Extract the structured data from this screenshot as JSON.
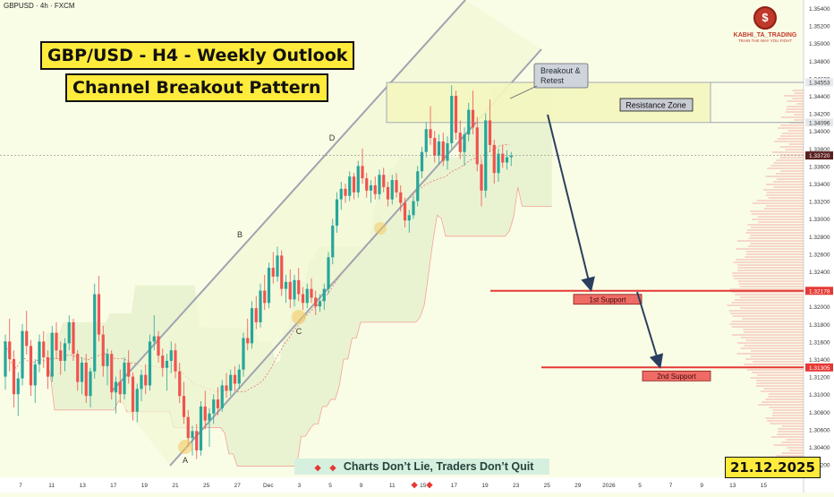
{
  "symbol_header": "GBPUSD · 4h · FXCM",
  "title_line1": "GBP/USD - H4 - Weekly Outlook",
  "title_line2": "Channel Breakout Pattern",
  "date_badge": "21.12.2025",
  "tagline": "Charts Don’t Lie, Traders Don’t Quit",
  "logo": {
    "name": "KABHI_TA_TRADING",
    "slogan": "TRAIN THE WAY YOU FIGHT",
    "icon": "dollar-coin-icon"
  },
  "colors": {
    "bull": "#26a69a",
    "bear": "#ef5350",
    "channel": "#a0a4b0",
    "support": "#e53935",
    "arrow": "#2a3f5f",
    "resistance_fill": "#f5f7c0",
    "label_red": "#d9534f"
  },
  "chart_data": {
    "type": "candlestick",
    "price_axis": {
      "ticks": [
        "1.35400",
        "1.35200",
        "1.35000",
        "1.34800",
        "1.34600",
        "1.34400",
        "1.34200",
        "1.34000",
        "1.33800",
        "1.33600",
        "1.33400",
        "1.33200",
        "1.33000",
        "1.32800",
        "1.32600",
        "1.32400",
        "1.32200",
        "1.32000",
        "1.31800",
        "1.31600",
        "1.31400",
        "1.31200",
        "1.31000",
        "1.30800",
        "1.30600",
        "1.30400",
        "1.30200"
      ],
      "highlighted": [
        {
          "value": "1.34553",
          "style": "light"
        },
        {
          "value": "1.34096",
          "style": "light"
        },
        {
          "value": "1.33720",
          "style": "dark"
        },
        {
          "value": "1.32178",
          "style": "red"
        },
        {
          "value": "1.31305",
          "style": "red"
        }
      ]
    },
    "time_axis": [
      "7",
      "11",
      "13",
      "17",
      "19",
      "21",
      "25",
      "27",
      "Dec",
      "3",
      "5",
      "9",
      "11",
      "15",
      "17",
      "19",
      "23",
      "25",
      "29",
      "2026",
      "5",
      "7",
      "9",
      "13",
      "15"
    ],
    "swing_points": [
      {
        "label": "A",
        "price": 1.303
      },
      {
        "label": "B",
        "price": 1.3268
      },
      {
        "label": "C",
        "price": 1.3195
      },
      {
        "label": "D",
        "price": 1.338
      }
    ],
    "annotations": {
      "callout": "Breakout & Retest",
      "resistance_label": "Resistance Zone",
      "support1_label": "1st Support",
      "support2_label": "2nd Support"
    },
    "levels": {
      "resistance_top": 1.34553,
      "resistance_bottom": 1.34096,
      "last_price": 1.3372,
      "support1": 1.32178,
      "support2": 1.31305
    },
    "candles_ohlc": [
      [
        1.312,
        1.3168,
        1.3105,
        1.316
      ],
      [
        1.316,
        1.3186,
        1.3126,
        1.314
      ],
      [
        1.314,
        1.315,
        1.3085,
        1.31
      ],
      [
        1.31,
        1.3125,
        1.3075,
        1.3118
      ],
      [
        1.3118,
        1.318,
        1.311,
        1.3172
      ],
      [
        1.3172,
        1.3195,
        1.3145,
        1.3155
      ],
      [
        1.3155,
        1.3162,
        1.3098,
        1.311
      ],
      [
        1.311,
        1.314,
        1.309,
        1.3134
      ],
      [
        1.3134,
        1.3168,
        1.3125,
        1.316
      ],
      [
        1.316,
        1.3172,
        1.313,
        1.3142
      ],
      [
        1.3142,
        1.315,
        1.3106,
        1.312
      ],
      [
        1.312,
        1.3178,
        1.3114,
        1.317
      ],
      [
        1.317,
        1.3182,
        1.314,
        1.315
      ],
      [
        1.315,
        1.316,
        1.3122,
        1.3138
      ],
      [
        1.3138,
        1.3164,
        1.3126,
        1.3158
      ],
      [
        1.3158,
        1.319,
        1.315,
        1.3182
      ],
      [
        1.3182,
        1.3186,
        1.3138,
        1.3146
      ],
      [
        1.3146,
        1.315,
        1.3104,
        1.3114
      ],
      [
        1.3114,
        1.3142,
        1.31,
        1.3136
      ],
      [
        1.3136,
        1.3146,
        1.309,
        1.3098
      ],
      [
        1.3098,
        1.313,
        1.3085,
        1.3126
      ],
      [
        1.3126,
        1.3226,
        1.3118,
        1.3214
      ],
      [
        1.3214,
        1.3235,
        1.316,
        1.3168
      ],
      [
        1.3168,
        1.3178,
        1.312,
        1.3132
      ],
      [
        1.3132,
        1.3152,
        1.311,
        1.3146
      ],
      [
        1.3146,
        1.315,
        1.3094,
        1.3102
      ],
      [
        1.3102,
        1.312,
        1.3078,
        1.3114
      ],
      [
        1.3114,
        1.3128,
        1.309,
        1.31
      ],
      [
        1.31,
        1.3142,
        1.3094,
        1.3136
      ],
      [
        1.3136,
        1.315,
        1.3112,
        1.312
      ],
      [
        1.312,
        1.3125,
        1.307,
        1.308
      ],
      [
        1.308,
        1.3112,
        1.3068,
        1.3106
      ],
      [
        1.3106,
        1.3128,
        1.3092,
        1.3122
      ],
      [
        1.3122,
        1.3134,
        1.31,
        1.311
      ],
      [
        1.311,
        1.3168,
        1.3104,
        1.316
      ],
      [
        1.316,
        1.319,
        1.315,
        1.3166
      ],
      [
        1.3166,
        1.3172,
        1.3136,
        1.3144
      ],
      [
        1.3144,
        1.3152,
        1.312,
        1.313
      ],
      [
        1.313,
        1.3146,
        1.3104,
        1.3138
      ],
      [
        1.3138,
        1.316,
        1.3124,
        1.315
      ],
      [
        1.315,
        1.3158,
        1.3118,
        1.3126
      ],
      [
        1.3126,
        1.3136,
        1.309,
        1.3098
      ],
      [
        1.3098,
        1.3114,
        1.3066,
        1.3074
      ],
      [
        1.3074,
        1.3082,
        1.304,
        1.305
      ],
      [
        1.305,
        1.3064,
        1.303,
        1.3058
      ],
      [
        1.3058,
        1.3066,
        1.3026,
        1.3036
      ],
      [
        1.3036,
        1.3092,
        1.303,
        1.3086
      ],
      [
        1.3086,
        1.3104,
        1.306,
        1.307
      ],
      [
        1.307,
        1.3084,
        1.304,
        1.3078
      ],
      [
        1.3078,
        1.31,
        1.3066,
        1.3094
      ],
      [
        1.3094,
        1.3108,
        1.3076,
        1.3084
      ],
      [
        1.3084,
        1.3116,
        1.308,
        1.311
      ],
      [
        1.311,
        1.3124,
        1.3096,
        1.3104
      ],
      [
        1.3104,
        1.3128,
        1.3098,
        1.3122
      ],
      [
        1.3122,
        1.3132,
        1.3104,
        1.3112
      ],
      [
        1.3112,
        1.3134,
        1.3106,
        1.3128
      ],
      [
        1.3128,
        1.317,
        1.312,
        1.3164
      ],
      [
        1.3164,
        1.3186,
        1.315,
        1.3158
      ],
      [
        1.3158,
        1.3206,
        1.3152,
        1.3198
      ],
      [
        1.3198,
        1.3212,
        1.3174,
        1.3182
      ],
      [
        1.3182,
        1.3226,
        1.3176,
        1.3218
      ],
      [
        1.3218,
        1.3236,
        1.3196,
        1.3204
      ],
      [
        1.3204,
        1.325,
        1.3198,
        1.3244
      ],
      [
        1.3244,
        1.3262,
        1.3226,
        1.3234
      ],
      [
        1.3234,
        1.3268,
        1.3228,
        1.3258
      ],
      [
        1.3258,
        1.3264,
        1.3212,
        1.322
      ],
      [
        1.322,
        1.3236,
        1.3204,
        1.3228
      ],
      [
        1.3228,
        1.3242,
        1.3198,
        1.3208
      ],
      [
        1.3208,
        1.3236,
        1.32,
        1.323
      ],
      [
        1.323,
        1.3244,
        1.3206,
        1.3214
      ],
      [
        1.3214,
        1.3222,
        1.3196,
        1.3204
      ],
      [
        1.3204,
        1.3226,
        1.3198,
        1.322
      ],
      [
        1.322,
        1.3232,
        1.3204,
        1.321
      ],
      [
        1.321,
        1.3218,
        1.319,
        1.32
      ],
      [
        1.32,
        1.3214,
        1.3194,
        1.3206
      ],
      [
        1.3206,
        1.3226,
        1.3196,
        1.322
      ],
      [
        1.322,
        1.3262,
        1.3214,
        1.3256
      ],
      [
        1.3256,
        1.33,
        1.3248,
        1.3292
      ],
      [
        1.3292,
        1.333,
        1.3284,
        1.3322
      ],
      [
        1.3322,
        1.3342,
        1.331,
        1.3334
      ],
      [
        1.3334,
        1.334,
        1.3318,
        1.3326
      ],
      [
        1.3326,
        1.3354,
        1.332,
        1.3348
      ],
      [
        1.3348,
        1.3352,
        1.3322,
        1.333
      ],
      [
        1.333,
        1.3366,
        1.3324,
        1.336
      ],
      [
        1.336,
        1.338,
        1.334,
        1.3346
      ],
      [
        1.3346,
        1.3352,
        1.3324,
        1.3332
      ],
      [
        1.3332,
        1.3344,
        1.3318,
        1.3338
      ],
      [
        1.3338,
        1.3348,
        1.3322,
        1.3328
      ],
      [
        1.3328,
        1.3356,
        1.3322,
        1.335
      ],
      [
        1.335,
        1.3358,
        1.333,
        1.3336
      ],
      [
        1.3336,
        1.3342,
        1.3314,
        1.3322
      ],
      [
        1.3322,
        1.335,
        1.3316,
        1.3344
      ],
      [
        1.3344,
        1.3352,
        1.3324,
        1.333
      ],
      [
        1.333,
        1.3338,
        1.3308,
        1.3318
      ],
      [
        1.3318,
        1.3324,
        1.329,
        1.3298
      ],
      [
        1.3298,
        1.331,
        1.3284,
        1.3304
      ],
      [
        1.3304,
        1.3326,
        1.33,
        1.332
      ],
      [
        1.332,
        1.336,
        1.3314,
        1.3354
      ],
      [
        1.3354,
        1.3382,
        1.3346,
        1.3376
      ],
      [
        1.3376,
        1.341,
        1.337,
        1.3402
      ],
      [
        1.3402,
        1.3428,
        1.3384,
        1.3392
      ],
      [
        1.3392,
        1.34,
        1.3364,
        1.3372
      ],
      [
        1.3372,
        1.3396,
        1.3362,
        1.3388
      ],
      [
        1.3388,
        1.3398,
        1.336,
        1.3366
      ],
      [
        1.3366,
        1.3394,
        1.3356,
        1.3386
      ],
      [
        1.3386,
        1.3452,
        1.338,
        1.344
      ],
      [
        1.344,
        1.3446,
        1.339,
        1.3398
      ],
      [
        1.3398,
        1.3412,
        1.3368,
        1.3376
      ],
      [
        1.3376,
        1.3404,
        1.336,
        1.3396
      ],
      [
        1.3396,
        1.3432,
        1.3388,
        1.3424
      ],
      [
        1.3424,
        1.3446,
        1.3396,
        1.3404
      ],
      [
        1.3404,
        1.3416,
        1.3354,
        1.3362
      ],
      [
        1.3362,
        1.3368,
        1.3314,
        1.3332
      ],
      [
        1.3332,
        1.342,
        1.3324,
        1.3412
      ],
      [
        1.3412,
        1.3436,
        1.3376,
        1.3384
      ],
      [
        1.3384,
        1.339,
        1.334,
        1.3352
      ],
      [
        1.3352,
        1.338,
        1.3342,
        1.3374
      ],
      [
        1.3374,
        1.3384,
        1.3358,
        1.3364
      ],
      [
        1.3364,
        1.3378,
        1.3356,
        1.337
      ],
      [
        1.337,
        1.3376,
        1.336,
        1.3372
      ]
    ]
  }
}
